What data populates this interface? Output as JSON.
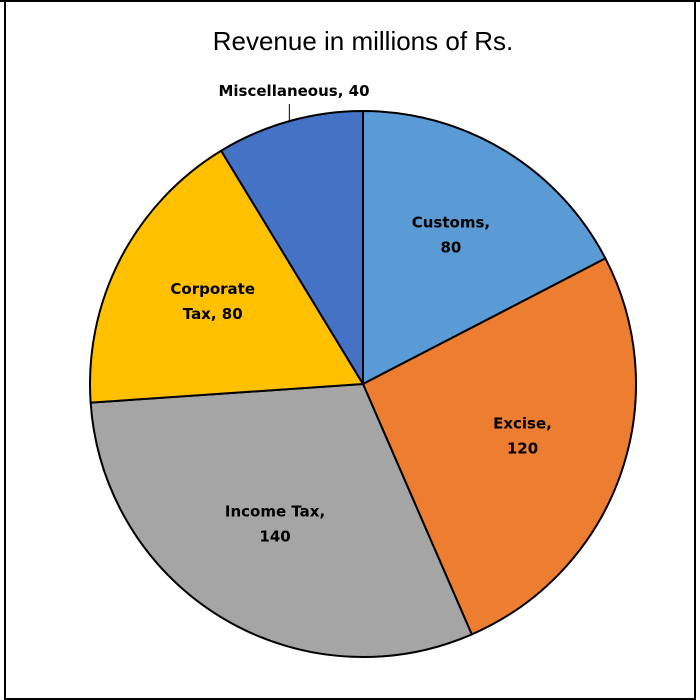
{
  "chart_data": {
    "type": "pie",
    "title": "Revenue in millions of Rs.",
    "start_angle_deg": 0,
    "direction": "clockwise",
    "slices": [
      {
        "name": "Customs",
        "value": 80,
        "color": "#5b9bd5",
        "label_lines": [
          "Customs,",
          "80"
        ],
        "label_color": "#000000",
        "label_side": "inside"
      },
      {
        "name": "Excise",
        "value": 120,
        "color": "#ed7d31",
        "label_lines": [
          "Excise,",
          "120"
        ],
        "label_color": "#000000",
        "label_side": "inside"
      },
      {
        "name": "Income Tax",
        "value": 140,
        "color": "#a5a5a5",
        "label_lines": [
          "Income Tax,",
          "140"
        ],
        "label_color": "#000000",
        "label_side": "inside"
      },
      {
        "name": "Corporate Tax",
        "value": 80,
        "color": "#ffc000",
        "label_lines": [
          "Corporate",
          "Tax, 80"
        ],
        "label_color": "#000000",
        "label_side": "inside"
      },
      {
        "name": "Miscellaneous",
        "value": 40,
        "color": "#4472c4",
        "label_lines": [
          "Miscellaneous, 40"
        ],
        "label_color": "#000000",
        "label_side": "outside"
      }
    ]
  }
}
